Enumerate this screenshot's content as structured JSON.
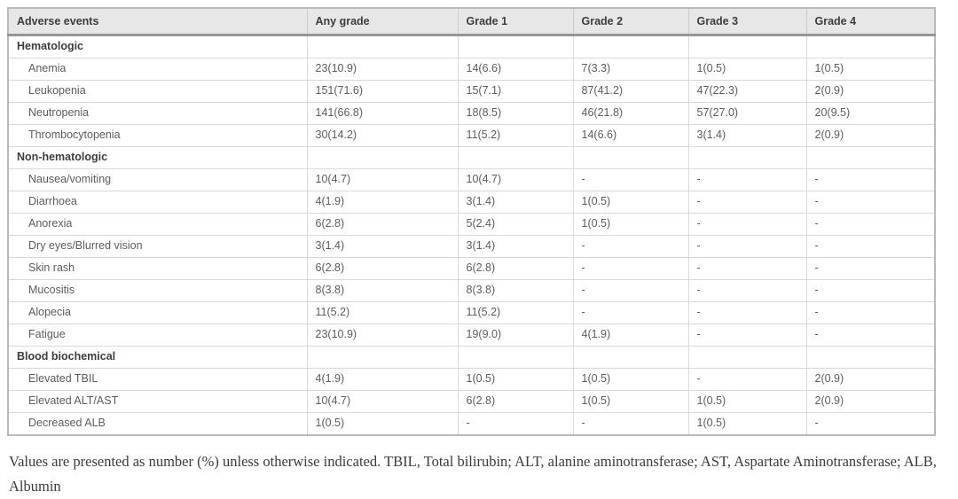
{
  "table": {
    "columns": [
      "Adverse events",
      "Any grade",
      "Grade 1",
      "Grade 2",
      "Grade 3",
      "Grade 4"
    ],
    "sections": [
      {
        "label": "Hematologic",
        "rows": [
          {
            "label": "Anemia",
            "values": [
              "23(10.9)",
              "14(6.6)",
              "7(3.3)",
              "1(0.5)",
              "1(0.5)"
            ]
          },
          {
            "label": "Leukopenia",
            "values": [
              "151(71.6)",
              "15(7.1)",
              "87(41.2)",
              "47(22.3)",
              "2(0.9)"
            ]
          },
          {
            "label": "Neutropenia",
            "values": [
              "141(66.8)",
              "18(8.5)",
              "46(21.8)",
              "57(27.0)",
              "20(9.5)"
            ]
          },
          {
            "label": "Thrombocytopenia",
            "values": [
              "30(14.2)",
              "11(5.2)",
              "14(6.6)",
              "3(1.4)",
              "2(0.9)"
            ]
          }
        ]
      },
      {
        "label": "Non-hematologic",
        "rows": [
          {
            "label": "Nausea/vomiting",
            "values": [
              "10(4.7)",
              "10(4.7)",
              "-",
              "-",
              "-"
            ]
          },
          {
            "label": "Diarrhoea",
            "values": [
              "4(1.9)",
              "3(1.4)",
              "1(0.5)",
              "-",
              "-"
            ]
          },
          {
            "label": "Anorexia",
            "values": [
              "6(2.8)",
              "5(2.4)",
              "1(0.5)",
              "-",
              "-"
            ]
          },
          {
            "label": "Dry eyes/Blurred vision",
            "values": [
              "3(1.4)",
              "3(1.4)",
              "-",
              "-",
              "-"
            ]
          },
          {
            "label": "Skin rash",
            "values": [
              "6(2.8)",
              "6(2.8)",
              "-",
              "-",
              "-"
            ]
          },
          {
            "label": "Mucositis",
            "values": [
              "8(3.8)",
              "8(3.8)",
              "-",
              "-",
              "-"
            ]
          },
          {
            "label": "Alopecia",
            "values": [
              "11(5.2)",
              "11(5.2)",
              "-",
              "-",
              "-"
            ]
          },
          {
            "label": "Fatigue",
            "values": [
              "23(10.9)",
              "19(9.0)",
              "4(1.9)",
              "-",
              "-"
            ]
          }
        ]
      },
      {
        "label": "Blood biochemical",
        "rows": [
          {
            "label": "Elevated TBIL",
            "values": [
              "4(1.9)",
              "1(0.5)",
              "1(0.5)",
              "-",
              "2(0.9)"
            ]
          },
          {
            "label": "Elevated ALT/AST",
            "values": [
              "10(4.7)",
              "6(2.8)",
              "1(0.5)",
              "1(0.5)",
              "2(0.9)"
            ]
          },
          {
            "label": "Decreased ALB",
            "values": [
              "1(0.5)",
              "-",
              "-",
              "1(0.5)",
              "-"
            ]
          }
        ]
      }
    ]
  },
  "footnote": "Values are presented as number (%) unless otherwise indicated. TBIL, Total bilirubin; ALT, alanine aminotransferase; AST, Aspartate Aminotransferase; ALB, Albumin",
  "colors": {
    "header_bg": "#e7e7e7",
    "header_bottom_border": "#969696",
    "cell_border": "#d9d9d9",
    "outer_border": "#b9b9b9",
    "header_text": "#3d3d3d",
    "body_text": "#5c5c5c",
    "footnote_text": "#3b3b3b"
  }
}
